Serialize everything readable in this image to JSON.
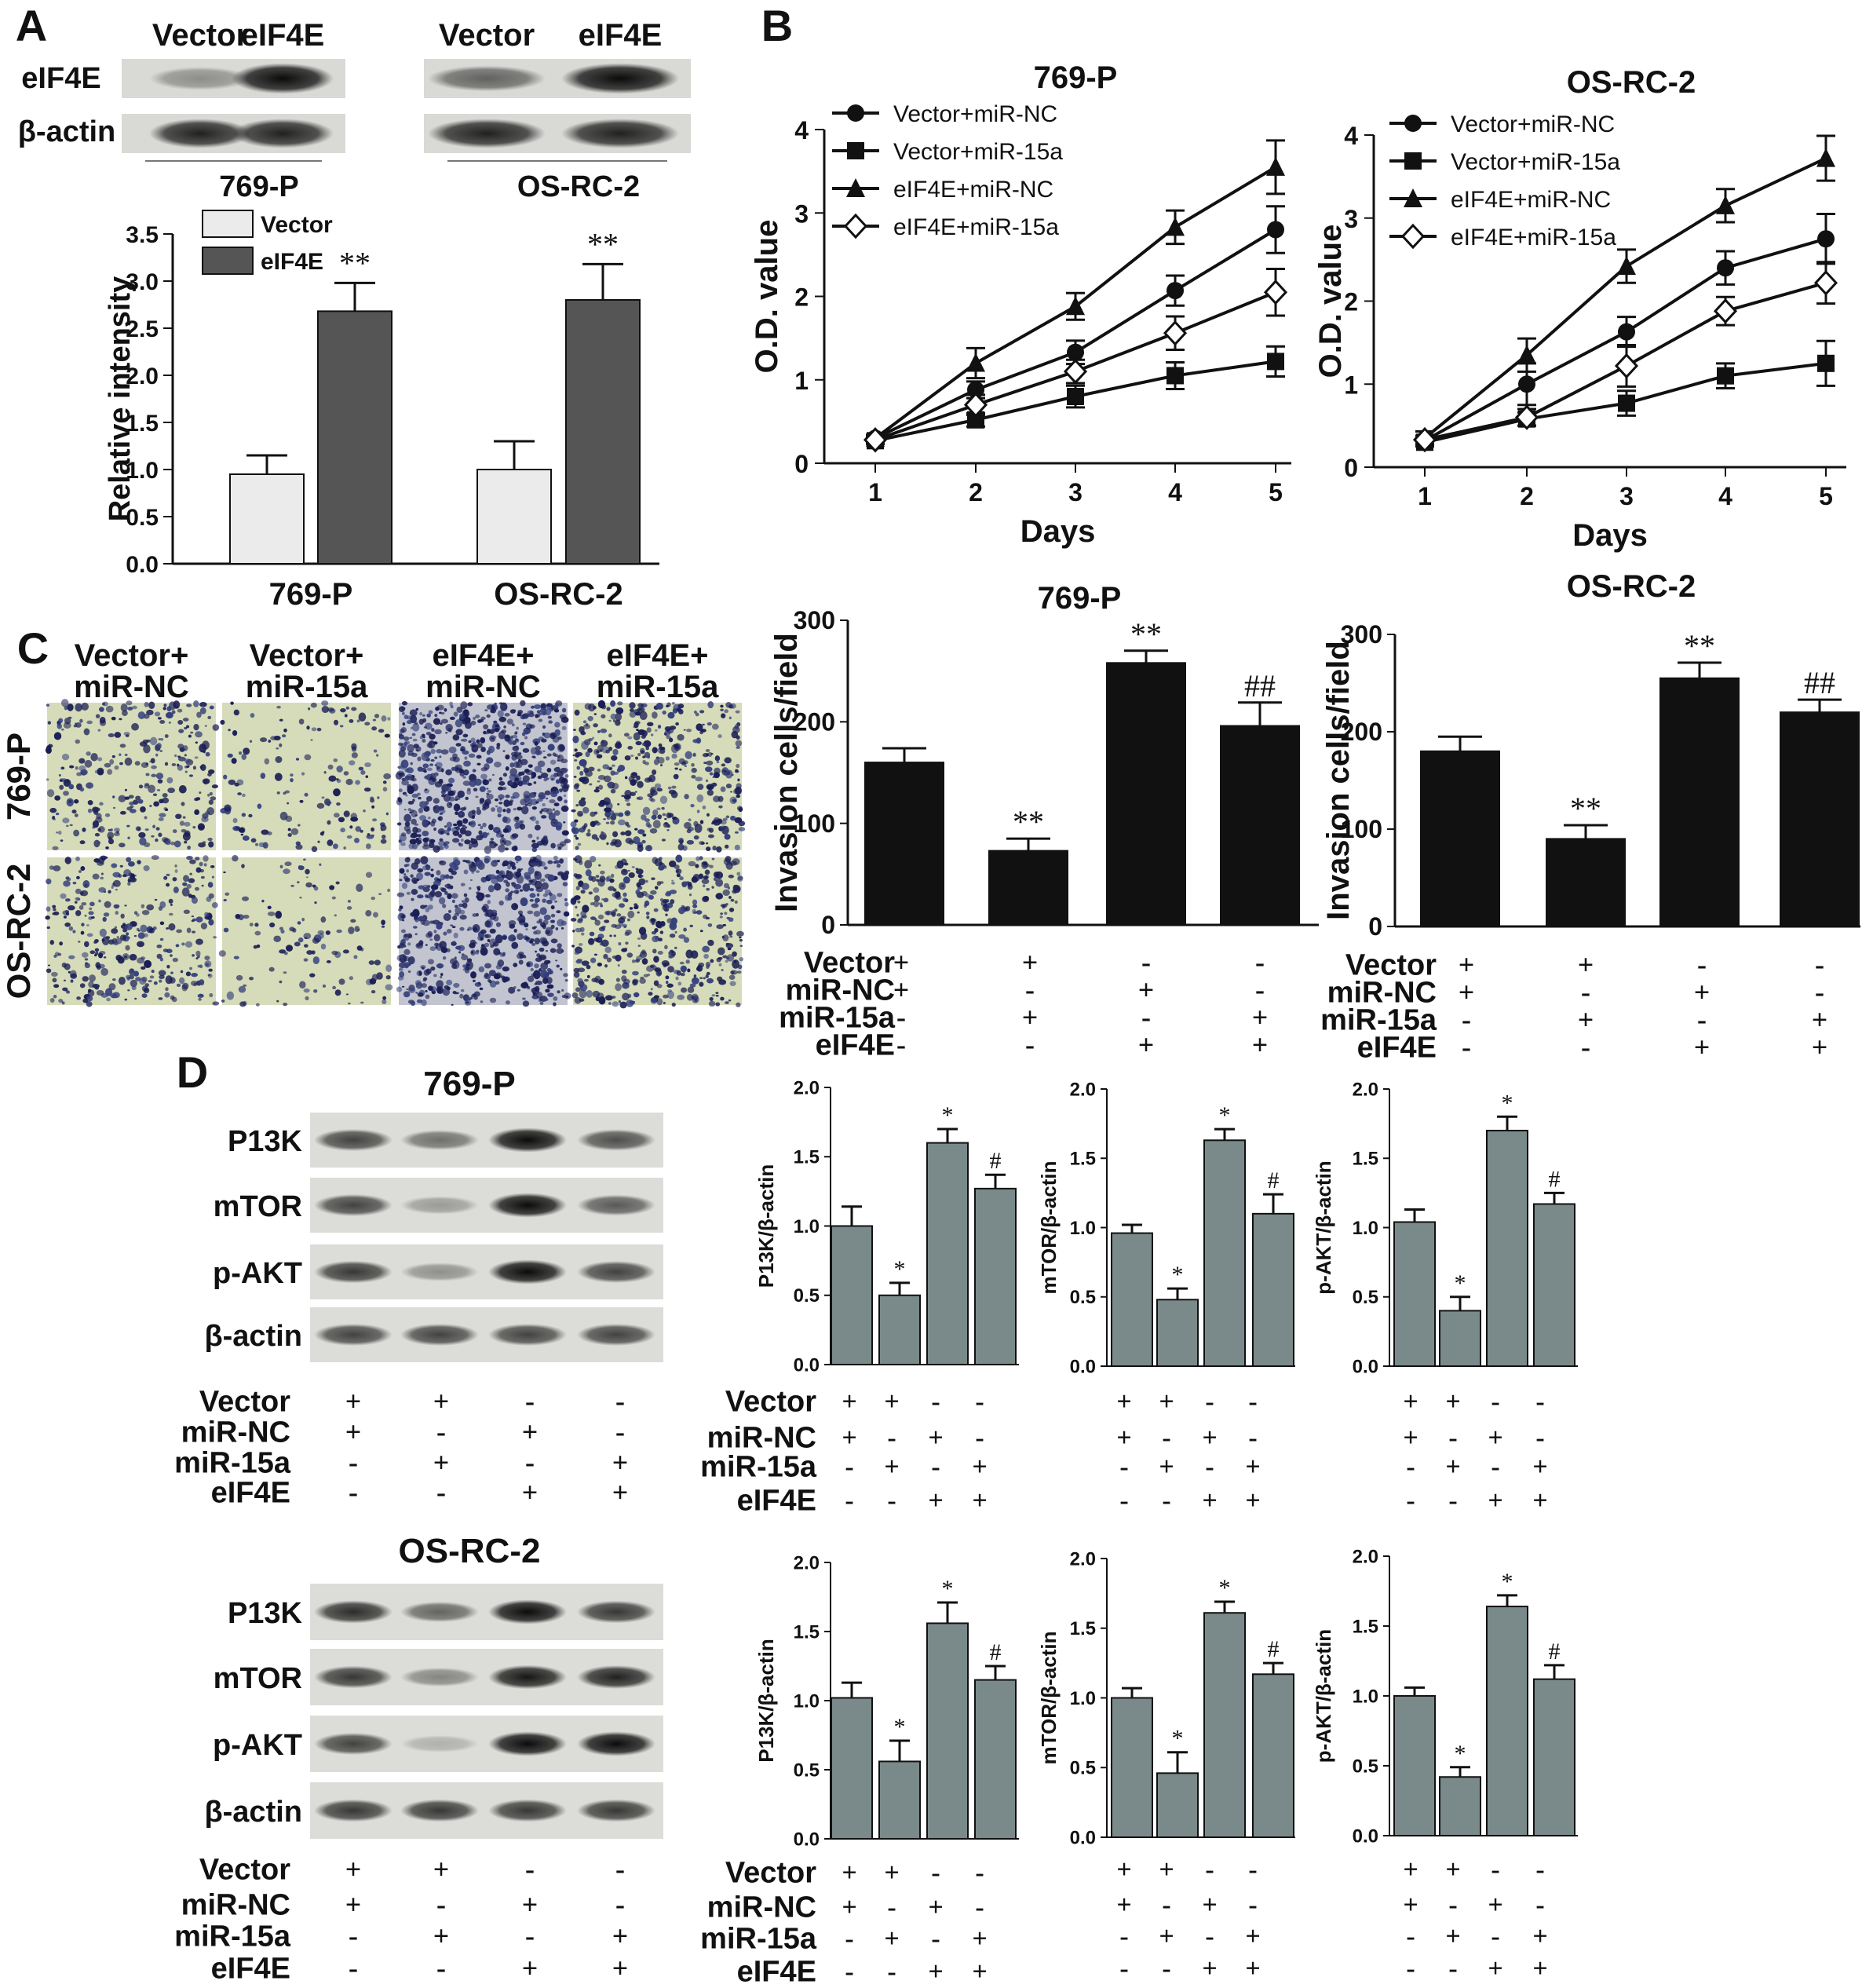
{
  "panels": {
    "A": "A",
    "B": "B",
    "C": "C",
    "D": "D"
  },
  "panelA": {
    "blot_lanes": [
      "Vector",
      "eIF4E"
    ],
    "blot_rows": [
      "eIF4E",
      "β-actin"
    ],
    "blot_cells": [
      "769-P",
      "OS-RC-2"
    ],
    "band_intensity": [
      {
        "cell": "769-P",
        "eIF4E": [
          0.35,
          0.95
        ],
        "actin": [
          0.85,
          0.85
        ]
      },
      {
        "cell": "OS-RC-2",
        "eIF4E": [
          0.55,
          0.95
        ],
        "actin": [
          0.85,
          0.85
        ]
      }
    ],
    "legend": [
      "Vector",
      "eIF4E"
    ],
    "colors": {
      "vector": "#ebebeb",
      "eif4e": "#555555"
    }
  },
  "panelC": {
    "columns": [
      [
        "Vector+",
        "miR-NC"
      ],
      [
        "Vector+",
        "miR-15a"
      ],
      [
        "eIF4E+",
        "miR-NC"
      ],
      [
        "eIF4E+",
        "miR-15a"
      ]
    ],
    "rows": [
      "769-P",
      "OS-RC-2"
    ],
    "cell_density": [
      [
        0.35,
        0.15,
        0.9,
        0.55
      ],
      [
        0.4,
        0.1,
        0.75,
        0.6
      ]
    ]
  },
  "conditions": {
    "labels": [
      "Vector",
      "miR-NC",
      "miR-15a",
      "eIF4E"
    ],
    "signs": [
      [
        "+",
        "+",
        "-",
        "-"
      ],
      [
        "+",
        "-",
        "+",
        "-"
      ],
      [
        "-",
        "+",
        "-",
        "+"
      ],
      [
        "-",
        "-",
        "+",
        "+"
      ]
    ]
  },
  "panelD": {
    "cells": [
      "769-P",
      "OS-RC-2"
    ],
    "blot_rows": [
      "P13K",
      "mTOR",
      "p-AKT",
      "β-actin"
    ],
    "band_intensity": [
      [
        [
          0.7,
          0.5,
          0.95,
          0.65
        ],
        [
          0.7,
          0.3,
          0.95,
          0.6
        ],
        [
          0.75,
          0.35,
          0.95,
          0.7
        ],
        [
          0.7,
          0.7,
          0.7,
          0.7
        ]
      ],
      [
        [
          0.8,
          0.55,
          0.95,
          0.75
        ],
        [
          0.75,
          0.4,
          0.9,
          0.85
        ],
        [
          0.7,
          0.2,
          0.95,
          0.95
        ],
        [
          0.75,
          0.75,
          0.75,
          0.75
        ]
      ]
    ]
  },
  "chart_data": [
    {
      "id": "A-bar",
      "type": "bar",
      "categories": [
        "769-P",
        "OS-RC-2"
      ],
      "series": [
        {
          "name": "Vector",
          "values": [
            0.95,
            1.0
          ],
          "errors": [
            0.2,
            0.3
          ]
        },
        {
          "name": "eIF4E",
          "values": [
            2.68,
            2.8
          ],
          "errors": [
            0.3,
            0.38
          ]
        }
      ],
      "annotations": [
        [
          "",
          "**"
        ],
        [
          "",
          "**"
        ]
      ],
      "ylabel": "Relative intensity",
      "ylim": [
        0,
        3.5
      ],
      "yticks": [
        "0.0",
        "0.5",
        "1.0",
        "1.5",
        "2.0",
        "2.5",
        "3.0",
        "3.5"
      ],
      "legend": "top-left"
    },
    {
      "id": "B-769P",
      "type": "line",
      "title": "769-P",
      "x": [
        1,
        2,
        3,
        4,
        5
      ],
      "xlabel": "Days",
      "ylabel": "O.D. value",
      "ylim": [
        0,
        4
      ],
      "yticks": [
        "0",
        "1",
        "2",
        "3",
        "4"
      ],
      "series": [
        {
          "name": "Vector+miR-NC",
          "marker": "circle",
          "values": [
            0.3,
            0.88,
            1.33,
            2.07,
            2.8
          ],
          "errors": [
            0.04,
            0.1,
            0.14,
            0.18,
            0.28
          ]
        },
        {
          "name": "Vector+miR-15a",
          "marker": "square",
          "values": [
            0.27,
            0.52,
            0.8,
            1.05,
            1.22
          ],
          "errors": [
            0.04,
            0.08,
            0.13,
            0.16,
            0.18
          ]
        },
        {
          "name": "eIF4E+miR-NC",
          "marker": "triangle",
          "values": [
            0.3,
            1.2,
            1.88,
            2.83,
            3.55
          ],
          "errors": [
            0.04,
            0.18,
            0.16,
            0.2,
            0.32
          ]
        },
        {
          "name": "eIF4E+miR-15a",
          "marker": "diamond",
          "values": [
            0.28,
            0.7,
            1.1,
            1.56,
            2.05
          ],
          "errors": [
            0.04,
            0.12,
            0.14,
            0.2,
            0.28
          ]
        }
      ],
      "legend": "top-left"
    },
    {
      "id": "B-OSRC2",
      "type": "line",
      "title": "OS-RC-2",
      "x": [
        1,
        2,
        3,
        4,
        5
      ],
      "xlabel": "Days",
      "ylabel": "O.D. value",
      "ylim": [
        0,
        4
      ],
      "yticks": [
        "0",
        "1",
        "2",
        "3",
        "4"
      ],
      "series": [
        {
          "name": "Vector+miR-NC",
          "marker": "circle",
          "values": [
            0.32,
            1.0,
            1.63,
            2.4,
            2.75
          ],
          "errors": [
            0.05,
            0.25,
            0.18,
            0.2,
            0.3
          ]
        },
        {
          "name": "Vector+miR-15a",
          "marker": "square",
          "values": [
            0.3,
            0.58,
            0.77,
            1.1,
            1.25
          ],
          "errors": [
            0.05,
            0.08,
            0.15,
            0.15,
            0.27
          ]
        },
        {
          "name": "eIF4E+miR-NC",
          "marker": "triangle",
          "values": [
            0.35,
            1.35,
            2.42,
            3.15,
            3.72
          ],
          "errors": [
            0.08,
            0.2,
            0.2,
            0.2,
            0.27
          ]
        },
        {
          "name": "eIF4E+miR-15a",
          "marker": "diamond",
          "values": [
            0.33,
            0.6,
            1.22,
            1.88,
            2.22
          ],
          "errors": [
            0.05,
            0.1,
            0.25,
            0.17,
            0.25
          ]
        }
      ],
      "legend": "top-left"
    },
    {
      "id": "C-769P",
      "type": "bar",
      "title": "769-P",
      "ylabel": "Invasion cells/field",
      "ylim": [
        0,
        300
      ],
      "yticks": [
        "0",
        "100",
        "200",
        "300"
      ],
      "values": [
        160,
        73,
        258,
        196
      ],
      "errors": [
        14,
        12,
        12,
        23
      ],
      "annotations": [
        "",
        "**",
        "**",
        "##"
      ]
    },
    {
      "id": "C-OSRC2",
      "type": "bar",
      "title": "OS-RC-2",
      "ylabel": "Invasion cells/field",
      "ylim": [
        0,
        300
      ],
      "yticks": [
        "0",
        "100",
        "200",
        "300"
      ],
      "values": [
        180,
        90,
        255,
        220
      ],
      "errors": [
        15,
        14,
        16,
        13
      ],
      "annotations": [
        "",
        "**",
        "**",
        "##"
      ]
    },
    {
      "id": "D-769P-PI3K",
      "type": "bar",
      "ylabel": "P13K/β-actin",
      "ylim": [
        0,
        2
      ],
      "yticks": [
        "0.0",
        "0.5",
        "1.0",
        "1.5",
        "2.0"
      ],
      "values": [
        1.0,
        0.5,
        1.6,
        1.27
      ],
      "errors": [
        0.14,
        0.09,
        0.1,
        0.1
      ],
      "annotations": [
        "",
        "*",
        "*",
        "#"
      ]
    },
    {
      "id": "D-769P-mTOR",
      "type": "bar",
      "ylabel": "mTOR/β-actin",
      "ylim": [
        0,
        2
      ],
      "yticks": [
        "0.0",
        "0.5",
        "1.0",
        "1.5",
        "2.0"
      ],
      "values": [
        0.96,
        0.48,
        1.63,
        1.1
      ],
      "errors": [
        0.06,
        0.08,
        0.08,
        0.14
      ],
      "annotations": [
        "",
        "*",
        "*",
        "#"
      ]
    },
    {
      "id": "D-769P-pAKT",
      "type": "bar",
      "ylabel": "p-AKT/β-actin",
      "ylim": [
        0,
        2
      ],
      "yticks": [
        "0.0",
        "0.5",
        "1.0",
        "1.5",
        "2.0"
      ],
      "values": [
        1.04,
        0.4,
        1.7,
        1.17
      ],
      "errors": [
        0.09,
        0.1,
        0.1,
        0.08
      ],
      "annotations": [
        "",
        "*",
        "*",
        "#"
      ]
    },
    {
      "id": "D-OSRC2-PI3K",
      "type": "bar",
      "ylabel": "P13K/β-actin",
      "ylim": [
        0,
        2
      ],
      "yticks": [
        "0.0",
        "0.5",
        "1.0",
        "1.5",
        "2.0"
      ],
      "values": [
        1.02,
        0.56,
        1.56,
        1.15
      ],
      "errors": [
        0.11,
        0.15,
        0.15,
        0.1
      ],
      "annotations": [
        "",
        "*",
        "*",
        "#"
      ]
    },
    {
      "id": "D-OSRC2-mTOR",
      "type": "bar",
      "ylabel": "mTOR/β-actin",
      "ylim": [
        0,
        2
      ],
      "yticks": [
        "0.0",
        "0.5",
        "1.0",
        "1.5",
        "2.0"
      ],
      "values": [
        1.0,
        0.46,
        1.61,
        1.17
      ],
      "errors": [
        0.07,
        0.15,
        0.08,
        0.08
      ],
      "annotations": [
        "",
        "*",
        "*",
        "#"
      ]
    },
    {
      "id": "D-OSRC2-pAKT",
      "type": "bar",
      "ylabel": "p-AKT/β-actin",
      "ylim": [
        0,
        2
      ],
      "yticks": [
        "0.0",
        "0.5",
        "1.0",
        "1.5",
        "2.0"
      ],
      "values": [
        1.0,
        0.42,
        1.64,
        1.12
      ],
      "errors": [
        0.06,
        0.07,
        0.08,
        0.1
      ],
      "annotations": [
        "",
        "*",
        "*",
        "#"
      ]
    }
  ]
}
